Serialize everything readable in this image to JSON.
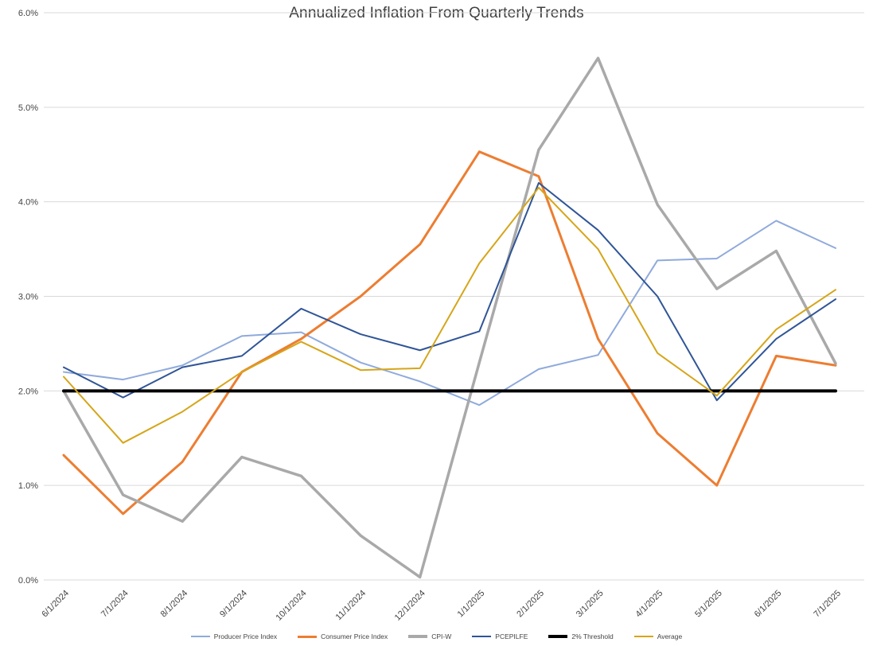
{
  "chart_data": {
    "type": "line",
    "title": "Annualized Inflation From Quarterly Trends",
    "xlabel": "",
    "ylabel": "",
    "ylim": [
      0,
      6
    ],
    "grid": true,
    "legend_position": "bottom",
    "y_ticks": [
      "6.0%",
      "5.0%",
      "4.0%",
      "3.0%",
      "2.0%",
      "1.0%",
      "0.0%"
    ],
    "categories": [
      "6/1/2024",
      "7/1/2024",
      "8/1/2024",
      "9/1/2024",
      "10/1/2024",
      "11/1/2024",
      "12/1/2024",
      "1/1/2025",
      "2/1/2025",
      "3/1/2025",
      "4/1/2025",
      "5/1/2025",
      "6/1/2025",
      "7/1/2025"
    ],
    "series": [
      {
        "name": "Producer Price Index",
        "color": "#8FAADC",
        "width": 2,
        "values": [
          2.2,
          2.12,
          2.27,
          2.58,
          2.62,
          2.3,
          2.1,
          1.85,
          2.23,
          2.38,
          3.38,
          3.4,
          3.8,
          3.51
        ]
      },
      {
        "name": "Consumer Price Index",
        "color": "#ED7D31",
        "width": 3,
        "values": [
          1.32,
          0.7,
          1.25,
          2.2,
          2.55,
          3.0,
          3.55,
          4.53,
          4.27,
          2.55,
          1.55,
          1.0,
          2.37,
          2.27
        ]
      },
      {
        "name": "CPI-W",
        "color": "#A9A9A9",
        "width": 3.5,
        "values": [
          2.0,
          0.9,
          0.62,
          1.3,
          1.1,
          0.47,
          0.03,
          2.3,
          4.55,
          5.52,
          3.97,
          3.08,
          3.48,
          2.29
        ]
      },
      {
        "name": "PCEPILFE",
        "color": "#2F5597",
        "width": 2,
        "values": [
          2.25,
          1.93,
          2.25,
          2.37,
          2.87,
          2.6,
          2.43,
          2.63,
          4.2,
          3.7,
          3.0,
          1.9,
          2.55,
          2.97
        ]
      },
      {
        "name": "2% Threshold",
        "color": "#000000",
        "width": 4,
        "values": [
          2.0,
          2.0,
          2.0,
          2.0,
          2.0,
          2.0,
          2.0,
          2.0,
          2.0,
          2.0,
          2.0,
          2.0,
          2.0,
          2.0
        ]
      },
      {
        "name": "Average",
        "color": "#D6A519",
        "width": 2,
        "values": [
          2.15,
          1.45,
          1.78,
          2.2,
          2.52,
          2.22,
          2.24,
          3.35,
          4.15,
          3.5,
          2.4,
          1.95,
          2.65,
          3.07
        ]
      }
    ]
  }
}
